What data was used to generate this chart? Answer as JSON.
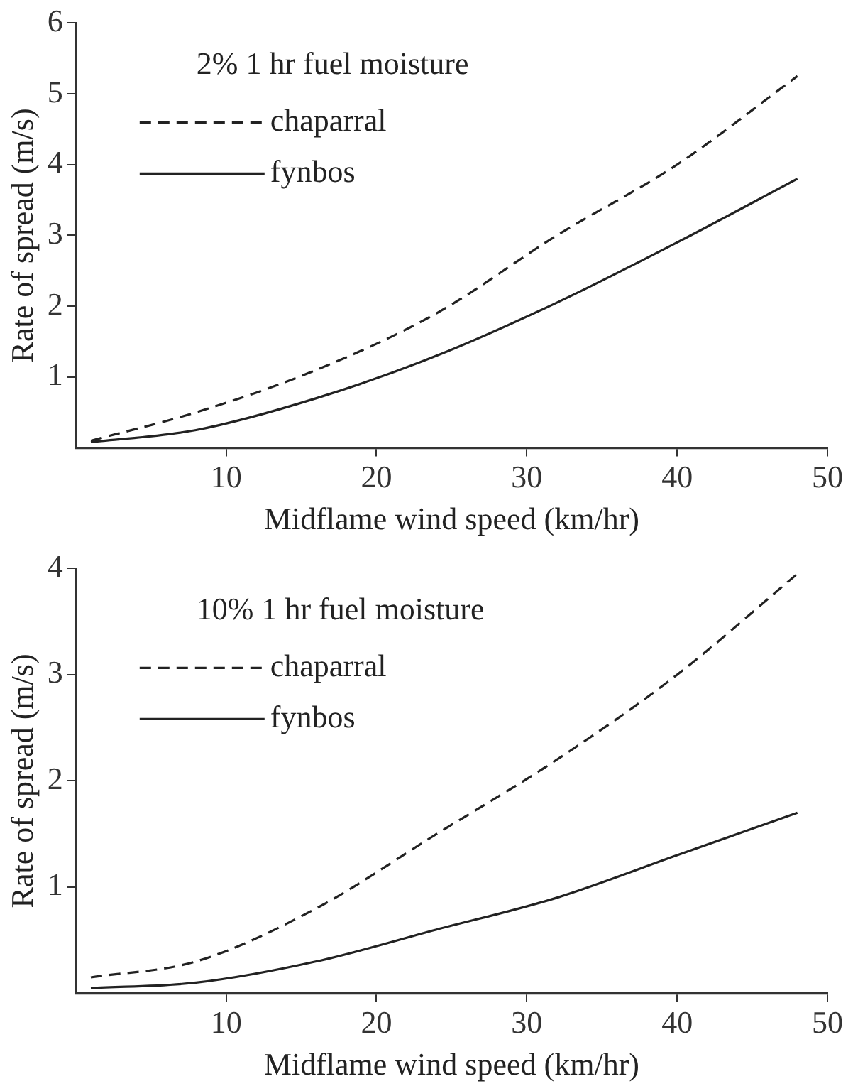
{
  "chart_data": [
    {
      "type": "line",
      "legend_title": "2% 1 hr fuel moisture",
      "xlabel": "Midflame wind speed (km/hr)",
      "ylabel": "Rate of spread (m/s)",
      "x": [
        1,
        8,
        16,
        24,
        32,
        40,
        48
      ],
      "xlim": [
        0,
        50
      ],
      "xticks": [
        10,
        20,
        30,
        40,
        50
      ],
      "ylim": [
        0,
        6
      ],
      "yticks": [
        1,
        2,
        3,
        4,
        5,
        6
      ],
      "legend": "top left",
      "grid": false,
      "marker": "none",
      "series": [
        {
          "name": "chaparral",
          "color": "#222222",
          "line_style": "dashed",
          "values": [
            0.1,
            0.5,
            1.1,
            1.9,
            3.0,
            4.0,
            5.25
          ]
        },
        {
          "name": "fynbos",
          "color": "#222222",
          "line_style": "solid",
          "values": [
            0.08,
            0.25,
            0.7,
            1.3,
            2.05,
            2.9,
            3.8
          ]
        }
      ]
    },
    {
      "type": "line",
      "legend_title": "10% 1 hr fuel moisture",
      "xlabel": "Midflame wind speed (km/hr)",
      "ylabel": "Rate of spread (m/s)",
      "x": [
        1,
        8,
        16,
        24,
        32,
        40,
        48
      ],
      "xlim": [
        0,
        50
      ],
      "xticks": [
        10,
        20,
        30,
        40,
        50
      ],
      "ylim": [
        0,
        4
      ],
      "yticks": [
        1,
        2,
        3,
        4
      ],
      "legend": "top left",
      "grid": false,
      "marker": "none",
      "series": [
        {
          "name": "chaparral",
          "color": "#222222",
          "line_style": "dashed",
          "values": [
            0.15,
            0.3,
            0.8,
            1.5,
            2.2,
            3.0,
            3.95
          ]
        },
        {
          "name": "fynbos",
          "color": "#222222",
          "line_style": "solid",
          "values": [
            0.05,
            0.1,
            0.3,
            0.6,
            0.9,
            1.3,
            1.7
          ]
        }
      ]
    }
  ]
}
